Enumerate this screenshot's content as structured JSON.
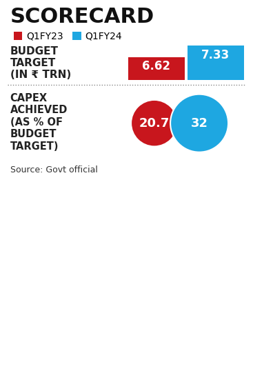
{
  "title": "SCORECARD",
  "source": "Source: Govt official",
  "chart_data": [
    {
      "type": "bar",
      "title": "BUDGET\nTARGET\n(IN ₹ TRN)",
      "categories": [
        "Q1FY23",
        "Q1FY24"
      ],
      "values": [
        6.62,
        7.33
      ],
      "colors": [
        "#c8161d",
        "#1ea7e1"
      ],
      "ylim": [
        5.2,
        7.33
      ],
      "yticks": [],
      "tick_labels": false,
      "data_labels": true,
      "legend": "upper left"
    },
    {
      "type": "bubble",
      "title": "CAPEX\nACHIEVED\n(AS % OF\nBUDGET\nTARGET)",
      "categories": [
        "Q1FY23",
        "Q1FY24"
      ],
      "values": [
        20.7,
        32
      ],
      "colors": [
        "#c8161d",
        "#1ea7e1"
      ],
      "tick_labels": false,
      "data_labels": true
    }
  ]
}
